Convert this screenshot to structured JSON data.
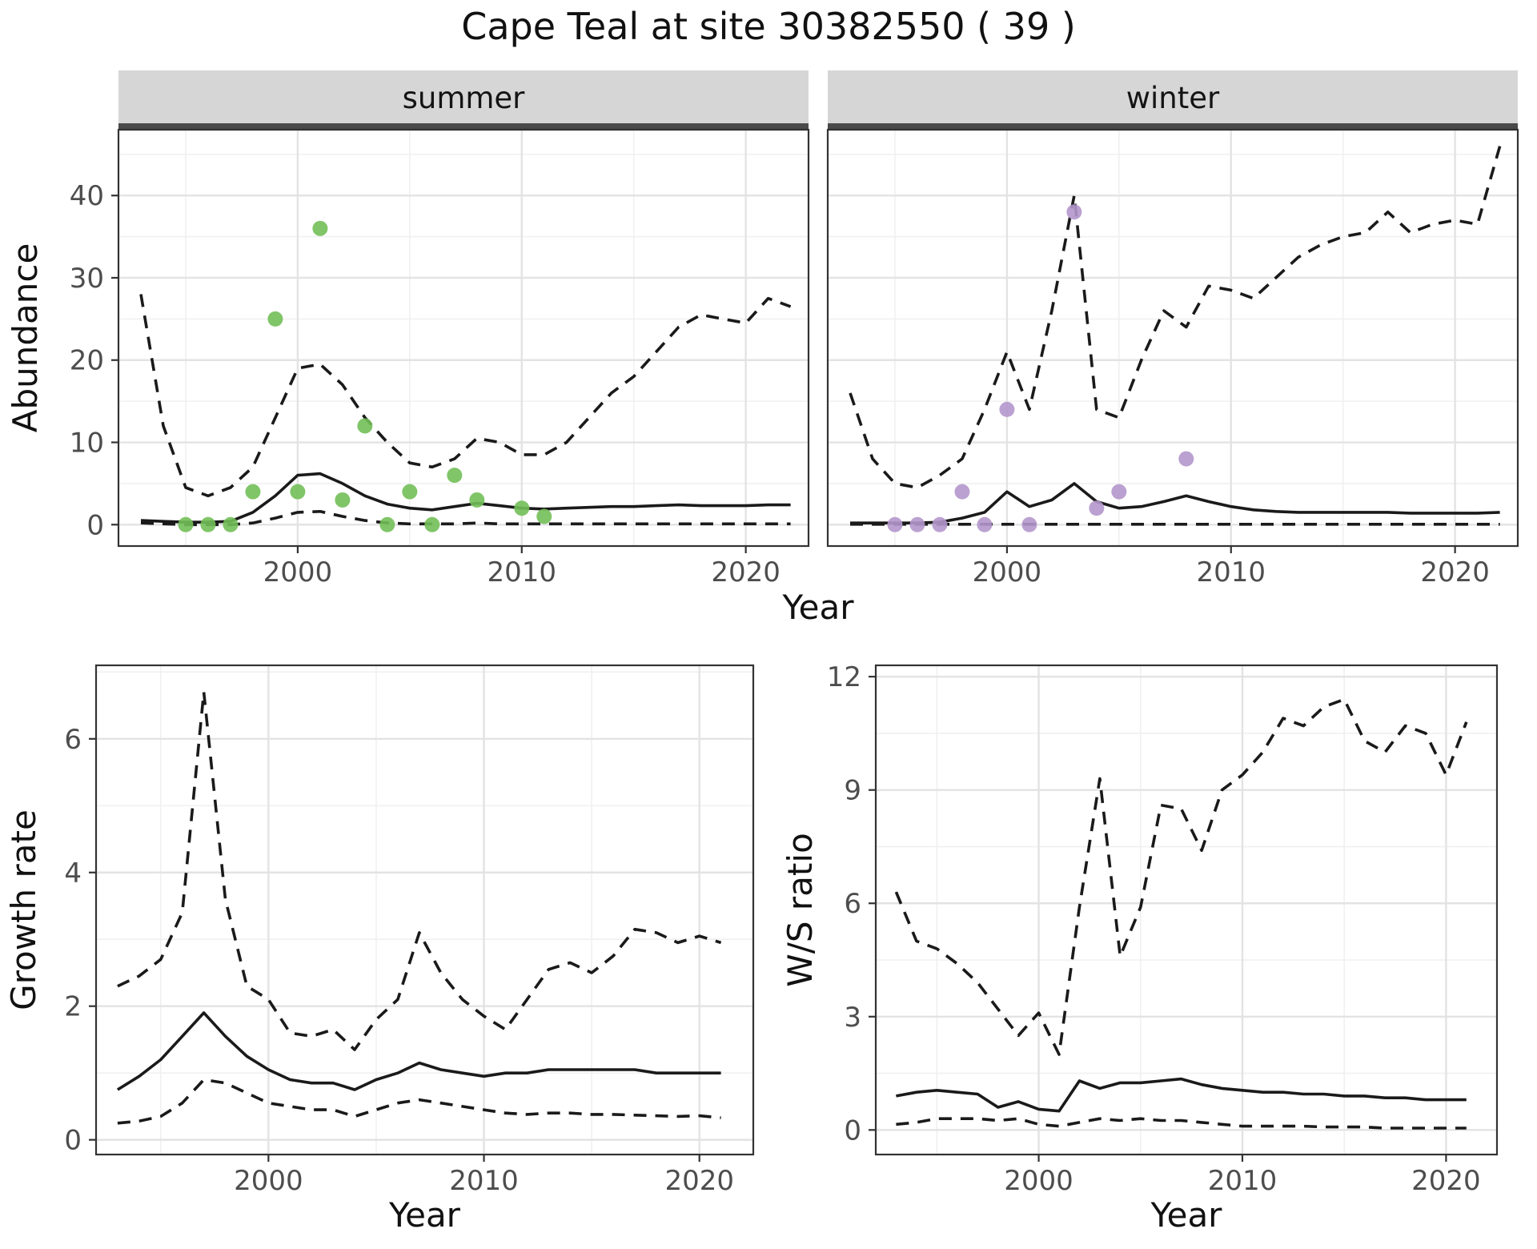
{
  "title": "Cape Teal at site 30382550 ( 39 )",
  "shared_xlabel": "Year",
  "colors": {
    "median_line": "#1a1a1a",
    "ci_line": "#1a1a1a",
    "summer_points": "#72bf58",
    "winter_points": "#b497cc",
    "strip_bg": "#d6d6d6",
    "strip_border": "#4a4a4a",
    "panel_border": "#333333",
    "grid_major": "#e3e3e3",
    "grid_minor": "#f0f0f0"
  },
  "chart_data": [
    {
      "id": "abundance-summer",
      "type": "line",
      "facet_label": "summer",
      "xlabel": "Year",
      "ylabel": "Abundance",
      "xlim": [
        1992,
        2022.8
      ],
      "ylim": [
        -2.6,
        48
      ],
      "xticks": [
        2000,
        2010,
        2020
      ],
      "yticks": [
        0,
        10,
        20,
        30,
        40
      ],
      "x": [
        1993,
        1994,
        1995,
        1996,
        1997,
        1998,
        1999,
        2000,
        2001,
        2002,
        2003,
        2004,
        2005,
        2006,
        2007,
        2008,
        2009,
        2010,
        2011,
        2012,
        2013,
        2014,
        2015,
        2016,
        2017,
        2018,
        2019,
        2020,
        2021,
        2022
      ],
      "series": [
        {
          "name": "upper-ci",
          "style": "dashed",
          "values": [
            28,
            12,
            4.5,
            3.5,
            4.5,
            7,
            13,
            19,
            19.5,
            17,
            13,
            10,
            7.5,
            7,
            8,
            10.5,
            10,
            8.5,
            8.5,
            10,
            13,
            16,
            18,
            21,
            24,
            25.5,
            25,
            24.5,
            27.5,
            26.5
          ]
        },
        {
          "name": "lower-ci",
          "style": "dashed",
          "values": [
            0.2,
            0.1,
            0,
            0,
            0,
            0.2,
            0.8,
            1.5,
            1.6,
            1.0,
            0.5,
            0.2,
            0.1,
            0.1,
            0.1,
            0.2,
            0.1,
            0.1,
            0.1,
            0.1,
            0.1,
            0.1,
            0.1,
            0.1,
            0.1,
            0.1,
            0.1,
            0.1,
            0.1,
            0.1
          ]
        },
        {
          "name": "median",
          "style": "solid",
          "values": [
            0.5,
            0.4,
            0.3,
            0.3,
            0.4,
            1.5,
            3.5,
            6.0,
            6.2,
            5.0,
            3.5,
            2.5,
            2.0,
            1.8,
            2.2,
            2.6,
            2.3,
            2.0,
            1.9,
            2.0,
            2.1,
            2.2,
            2.2,
            2.3,
            2.4,
            2.3,
            2.3,
            2.3,
            2.4,
            2.4
          ]
        }
      ],
      "points": {
        "name": "observed-summer",
        "color": "#72bf58",
        "x": [
          1995,
          1996,
          1997,
          1998,
          1999,
          2000,
          2001,
          2002,
          2003,
          2004,
          2005,
          2006,
          2007,
          2008,
          2010,
          2011
        ],
        "y": [
          0,
          0,
          0,
          4,
          25,
          4,
          36,
          3,
          12,
          0,
          4,
          0,
          6,
          3,
          2,
          1
        ]
      }
    },
    {
      "id": "abundance-winter",
      "type": "line",
      "facet_label": "winter",
      "xlabel": "Year",
      "ylabel": "",
      "xlim": [
        1992,
        2022.8
      ],
      "ylim": [
        -2.6,
        48
      ],
      "xticks": [
        2000,
        2010,
        2020
      ],
      "yticks": [
        0,
        10,
        20,
        30,
        40
      ],
      "x": [
        1993,
        1994,
        1995,
        1996,
        1997,
        1998,
        1999,
        2000,
        2001,
        2002,
        2003,
        2004,
        2005,
        2006,
        2007,
        2008,
        2009,
        2010,
        2011,
        2012,
        2013,
        2014,
        2015,
        2016,
        2017,
        2018,
        2019,
        2020,
        2021,
        2022
      ],
      "series": [
        {
          "name": "upper-ci",
          "style": "dashed",
          "values": [
            16,
            8,
            5,
            4.5,
            6,
            8,
            14,
            21,
            14,
            26,
            40,
            14,
            13,
            20,
            26,
            24,
            29,
            28.5,
            27.5,
            30,
            32.5,
            34,
            35,
            35.5,
            38,
            35.5,
            36.5,
            37,
            36.5,
            46
          ]
        },
        {
          "name": "lower-ci",
          "style": "dashed",
          "values": [
            0.05,
            0.05,
            0.05,
            0.05,
            0.05,
            0.05,
            0.05,
            0.05,
            0.05,
            0.05,
            0.05,
            0.05,
            0.05,
            0.05,
            0.05,
            0.05,
            0.05,
            0.05,
            0.05,
            0.05,
            0.05,
            0.05,
            0.05,
            0.05,
            0.05,
            0.05,
            0.05,
            0.05,
            0.05,
            0.05
          ]
        },
        {
          "name": "median",
          "style": "solid",
          "values": [
            0.2,
            0.2,
            0.2,
            0.2,
            0.3,
            0.8,
            1.5,
            4.0,
            2.2,
            3.0,
            5.0,
            2.8,
            2.0,
            2.2,
            2.8,
            3.5,
            2.8,
            2.2,
            1.8,
            1.6,
            1.5,
            1.5,
            1.5,
            1.5,
            1.5,
            1.4,
            1.4,
            1.4,
            1.4,
            1.5
          ]
        }
      ],
      "points": {
        "name": "observed-winter",
        "color": "#b497cc",
        "x": [
          1995,
          1996,
          1997,
          1998,
          1999,
          2000,
          2001,
          2003,
          2004,
          2005,
          2008
        ],
        "y": [
          0,
          0,
          0,
          4,
          0,
          14,
          0,
          38,
          2,
          4,
          8
        ]
      }
    },
    {
      "id": "growth-rate",
      "type": "line",
      "facet_label": "",
      "xlabel": "Year",
      "ylabel": "Growth rate",
      "xlim": [
        1992,
        2022.5
      ],
      "ylim": [
        -0.22,
        7.1
      ],
      "xticks": [
        2000,
        2010,
        2020
      ],
      "yticks": [
        0,
        2,
        4,
        6
      ],
      "x": [
        1993,
        1994,
        1995,
        1996,
        1997,
        1998,
        1999,
        2000,
        2001,
        2002,
        2003,
        2004,
        2005,
        2006,
        2007,
        2008,
        2009,
        2010,
        2011,
        2012,
        2013,
        2014,
        2015,
        2016,
        2017,
        2018,
        2019,
        2020,
        2021
      ],
      "series": [
        {
          "name": "upper-ci",
          "style": "dashed",
          "values": [
            2.3,
            2.45,
            2.7,
            3.4,
            6.7,
            3.6,
            2.3,
            2.1,
            1.6,
            1.55,
            1.65,
            1.35,
            1.8,
            2.1,
            3.1,
            2.5,
            2.1,
            1.85,
            1.65,
            2.1,
            2.55,
            2.65,
            2.5,
            2.75,
            3.15,
            3.1,
            2.95,
            3.05,
            2.95
          ]
        },
        {
          "name": "lower-ci",
          "style": "dashed",
          "values": [
            0.25,
            0.28,
            0.35,
            0.55,
            0.9,
            0.85,
            0.7,
            0.55,
            0.5,
            0.45,
            0.45,
            0.35,
            0.45,
            0.55,
            0.6,
            0.55,
            0.5,
            0.45,
            0.4,
            0.38,
            0.4,
            0.4,
            0.38,
            0.38,
            0.37,
            0.36,
            0.35,
            0.36,
            0.33
          ]
        },
        {
          "name": "median",
          "style": "solid",
          "values": [
            0.75,
            0.95,
            1.2,
            1.55,
            1.9,
            1.55,
            1.25,
            1.05,
            0.9,
            0.85,
            0.85,
            0.75,
            0.9,
            1.0,
            1.15,
            1.05,
            1.0,
            0.95,
            1.0,
            1.0,
            1.05,
            1.05,
            1.05,
            1.05,
            1.05,
            1.0,
            1.0,
            1.0,
            1.0
          ]
        }
      ],
      "points": null
    },
    {
      "id": "ws-ratio",
      "type": "line",
      "facet_label": "",
      "xlabel": "Year",
      "ylabel": "W/S ratio",
      "xlim": [
        1992,
        2022.5
      ],
      "ylim": [
        -0.65,
        12.3
      ],
      "xticks": [
        2000,
        2010,
        2020
      ],
      "yticks": [
        0,
        3,
        6,
        9,
        12
      ],
      "x": [
        1993,
        1994,
        1995,
        1996,
        1997,
        1998,
        1999,
        2000,
        2001,
        2002,
        2003,
        2004,
        2005,
        2006,
        2007,
        2008,
        2009,
        2010,
        2011,
        2012,
        2013,
        2014,
        2015,
        2016,
        2017,
        2018,
        2019,
        2020,
        2021
      ],
      "series": [
        {
          "name": "upper-ci",
          "style": "dashed",
          "values": [
            6.3,
            5.0,
            4.8,
            4.4,
            3.9,
            3.2,
            2.5,
            3.1,
            2.0,
            5.9,
            9.3,
            4.6,
            5.9,
            8.6,
            8.5,
            7.4,
            9.0,
            9.4,
            10.0,
            10.9,
            10.7,
            11.2,
            11.4,
            10.3,
            10.0,
            10.7,
            10.5,
            9.4,
            10.8
          ]
        },
        {
          "name": "lower-ci",
          "style": "dashed",
          "values": [
            0.15,
            0.2,
            0.3,
            0.3,
            0.3,
            0.25,
            0.3,
            0.15,
            0.1,
            0.2,
            0.3,
            0.25,
            0.3,
            0.25,
            0.25,
            0.2,
            0.15,
            0.1,
            0.1,
            0.1,
            0.1,
            0.08,
            0.08,
            0.08,
            0.05,
            0.05,
            0.05,
            0.05,
            0.05
          ]
        },
        {
          "name": "median",
          "style": "solid",
          "values": [
            0.9,
            1.0,
            1.05,
            1.0,
            0.95,
            0.6,
            0.75,
            0.55,
            0.5,
            1.3,
            1.1,
            1.25,
            1.25,
            1.3,
            1.35,
            1.2,
            1.1,
            1.05,
            1.0,
            1.0,
            0.95,
            0.95,
            0.9,
            0.9,
            0.85,
            0.85,
            0.8,
            0.8,
            0.8
          ]
        }
      ],
      "points": null
    }
  ]
}
